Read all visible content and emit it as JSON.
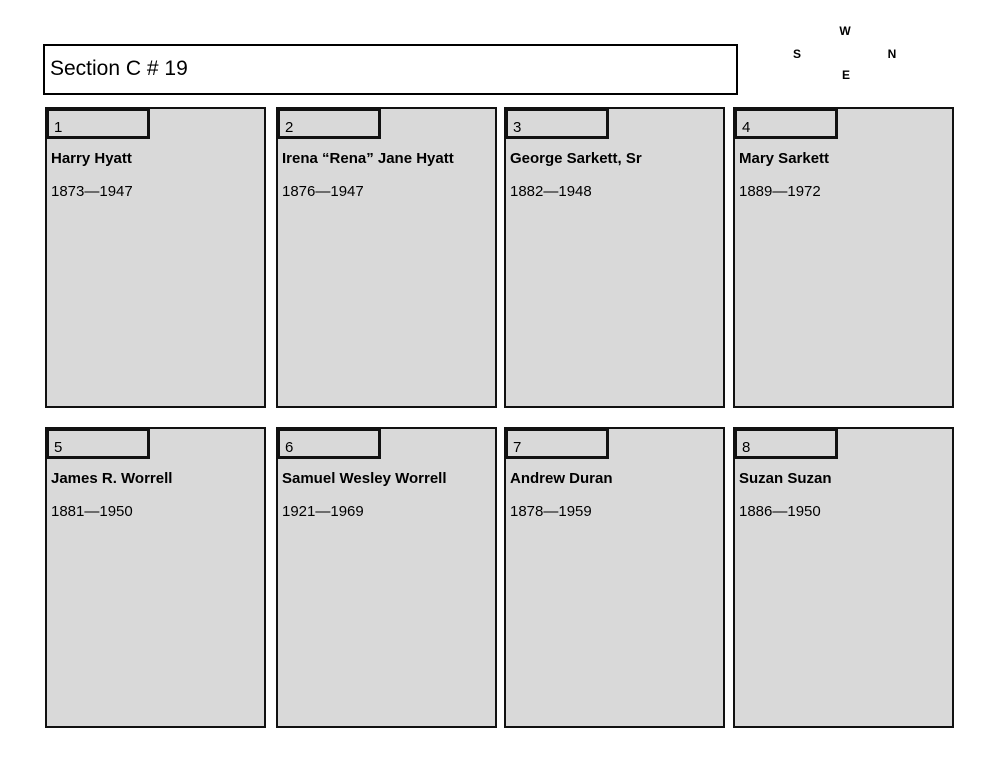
{
  "title": "Section C # 19",
  "compass": {
    "w": "W",
    "s": "S",
    "n": "N",
    "e": "E"
  },
  "plots": [
    {
      "number": "1",
      "name": "Harry Hyatt",
      "dates": "1873—1947"
    },
    {
      "number": "2",
      "name": "Irena “Rena” Jane Hyatt",
      "dates": "1876—1947"
    },
    {
      "number": "3",
      "name": "George Sarkett, Sr",
      "dates": "1882—1948"
    },
    {
      "number": "4",
      "name": "Mary Sarkett",
      "dates": "1889—1972"
    },
    {
      "number": "5",
      "name": "James R. Worrell",
      "dates": "1881—1950"
    },
    {
      "number": "6",
      "name": "Samuel Wesley Worrell",
      "dates": "1921—1969"
    },
    {
      "number": "7",
      "name": "Andrew Duran",
      "dates": "1878—1959"
    },
    {
      "number": "8",
      "name": "Suzan Suzan",
      "dates": "1886—1950"
    }
  ]
}
